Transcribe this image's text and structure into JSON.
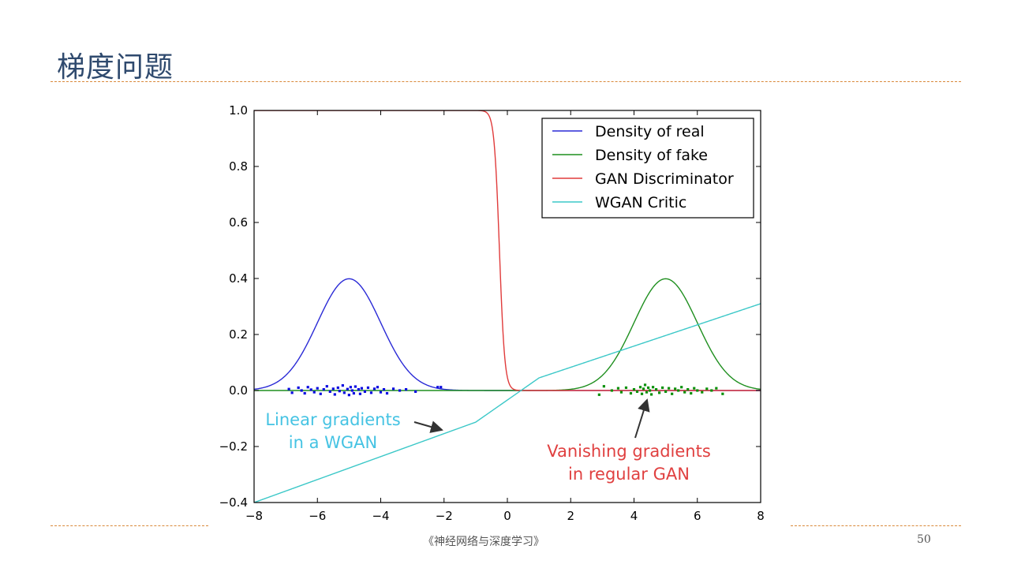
{
  "slide": {
    "title": "梯度问题",
    "footer_book": "《神经网络与深度学习》",
    "page_number": "50",
    "rule_color": "#d9893a"
  },
  "chart_data": {
    "type": "line",
    "xlim": [
      -8,
      8
    ],
    "ylim": [
      -0.4,
      1.0
    ],
    "xticks": [
      -8,
      -6,
      -4,
      -2,
      0,
      2,
      4,
      6,
      8
    ],
    "xtick_labels": [
      "−8",
      "−6",
      "−4",
      "−2",
      "0",
      "2",
      "4",
      "6",
      "8"
    ],
    "yticks": [
      1.0,
      0.8,
      0.6,
      0.4,
      0.2,
      0.0,
      -0.2,
      -0.4
    ],
    "ytick_labels": [
      "1.0",
      "0.8",
      "0.6",
      "0.4",
      "0.2",
      "0.0",
      "−0.2",
      "−0.4"
    ],
    "grid": false,
    "legend_position": "top-right",
    "series": [
      {
        "name": "Density of real",
        "color": "#2a2ad6",
        "kind": "gaussian",
        "mean": -5,
        "std": 1
      },
      {
        "name": "Density of fake",
        "color": "#1f8f1f",
        "kind": "gaussian",
        "mean": 5,
        "std": 1
      },
      {
        "name": "GAN Discriminator",
        "color": "#e03b3b",
        "kind": "sigmoid_desc",
        "center": -0.25,
        "steepness": 12
      },
      {
        "name": "WGAN Critic",
        "color": "#3cc8c8",
        "kind": "piecewise",
        "points": [
          [
            -8,
            -0.4
          ],
          [
            -1,
            -0.113
          ],
          [
            1,
            0.045
          ],
          [
            8,
            0.31
          ]
        ]
      }
    ],
    "samples": [
      {
        "name": "real samples",
        "color": "#0a0ae0",
        "points": [
          [
            -6.9,
            0.005
          ],
          [
            -6.8,
            -0.008
          ],
          [
            -6.6,
            0.01
          ],
          [
            -6.5,
            0.0
          ],
          [
            -6.4,
            -0.01
          ],
          [
            -6.3,
            0.012
          ],
          [
            -6.2,
            0.003
          ],
          [
            -6.1,
            -0.006
          ],
          [
            -6.0,
            0.008
          ],
          [
            -5.9,
            -0.012
          ],
          [
            -5.8,
            0.004
          ],
          [
            -5.7,
            0.015
          ],
          [
            -5.6,
            -0.004
          ],
          [
            -5.5,
            0.006
          ],
          [
            -5.45,
            -0.014
          ],
          [
            -5.35,
            0.01
          ],
          [
            -5.3,
            -0.002
          ],
          [
            -5.2,
            0.018
          ],
          [
            -5.15,
            -0.008
          ],
          [
            -5.05,
            0.005
          ],
          [
            -5.0,
            -0.016
          ],
          [
            -4.95,
            0.012
          ],
          [
            -4.9,
            0.0
          ],
          [
            -4.85,
            -0.01
          ],
          [
            -4.8,
            0.014
          ],
          [
            -4.7,
            0.004
          ],
          [
            -4.65,
            -0.012
          ],
          [
            -4.6,
            0.008
          ],
          [
            -4.5,
            -0.004
          ],
          [
            -4.4,
            0.01
          ],
          [
            -4.3,
            -0.008
          ],
          [
            -4.2,
            0.006
          ],
          [
            -4.1,
            0.012
          ],
          [
            -4.0,
            -0.006
          ],
          [
            -3.9,
            0.004
          ],
          [
            -3.8,
            -0.01
          ],
          [
            -3.6,
            0.006
          ],
          [
            -3.4,
            0.0
          ],
          [
            -3.2,
            0.004
          ],
          [
            -2.9,
            -0.004
          ],
          [
            -2.2,
            0.012
          ],
          [
            -2.1,
            0.012
          ]
        ]
      },
      {
        "name": "fake samples",
        "color": "#0a900a",
        "points": [
          [
            2.9,
            -0.015
          ],
          [
            3.05,
            0.015
          ],
          [
            3.3,
            0.0
          ],
          [
            3.5,
            0.008
          ],
          [
            3.6,
            -0.006
          ],
          [
            3.75,
            0.01
          ],
          [
            3.9,
            -0.01
          ],
          [
            4.0,
            0.004
          ],
          [
            4.1,
            -0.004
          ],
          [
            4.2,
            0.012
          ],
          [
            4.25,
            -0.012
          ],
          [
            4.3,
            0.006
          ],
          [
            4.35,
            0.02
          ],
          [
            4.4,
            -0.006
          ],
          [
            4.45,
            0.01
          ],
          [
            4.5,
            0.0
          ],
          [
            4.55,
            -0.014
          ],
          [
            4.6,
            0.012
          ],
          [
            4.7,
            0.004
          ],
          [
            4.8,
            -0.008
          ],
          [
            4.9,
            0.01
          ],
          [
            5.0,
            -0.004
          ],
          [
            5.1,
            0.008
          ],
          [
            5.2,
            -0.012
          ],
          [
            5.3,
            0.006
          ],
          [
            5.4,
            0.0
          ],
          [
            5.5,
            0.012
          ],
          [
            5.6,
            -0.006
          ],
          [
            5.7,
            0.004
          ],
          [
            5.8,
            -0.01
          ],
          [
            5.9,
            0.008
          ],
          [
            6.0,
            0.0
          ],
          [
            6.15,
            -0.006
          ],
          [
            6.3,
            0.006
          ],
          [
            6.45,
            0.0
          ],
          [
            6.6,
            0.008
          ],
          [
            6.8,
            -0.012
          ]
        ]
      }
    ],
    "annotations": [
      {
        "lines": [
          "Linear gradients",
          "in a WGAN"
        ],
        "color": "#45c3e3",
        "arrow_to": [
          -1.0,
          -0.14
        ]
      },
      {
        "lines": [
          "Vanishing gradients",
          "in regular GAN"
        ],
        "color": "#e04040",
        "arrow_to": [
          4.4,
          -0.03
        ]
      }
    ]
  }
}
